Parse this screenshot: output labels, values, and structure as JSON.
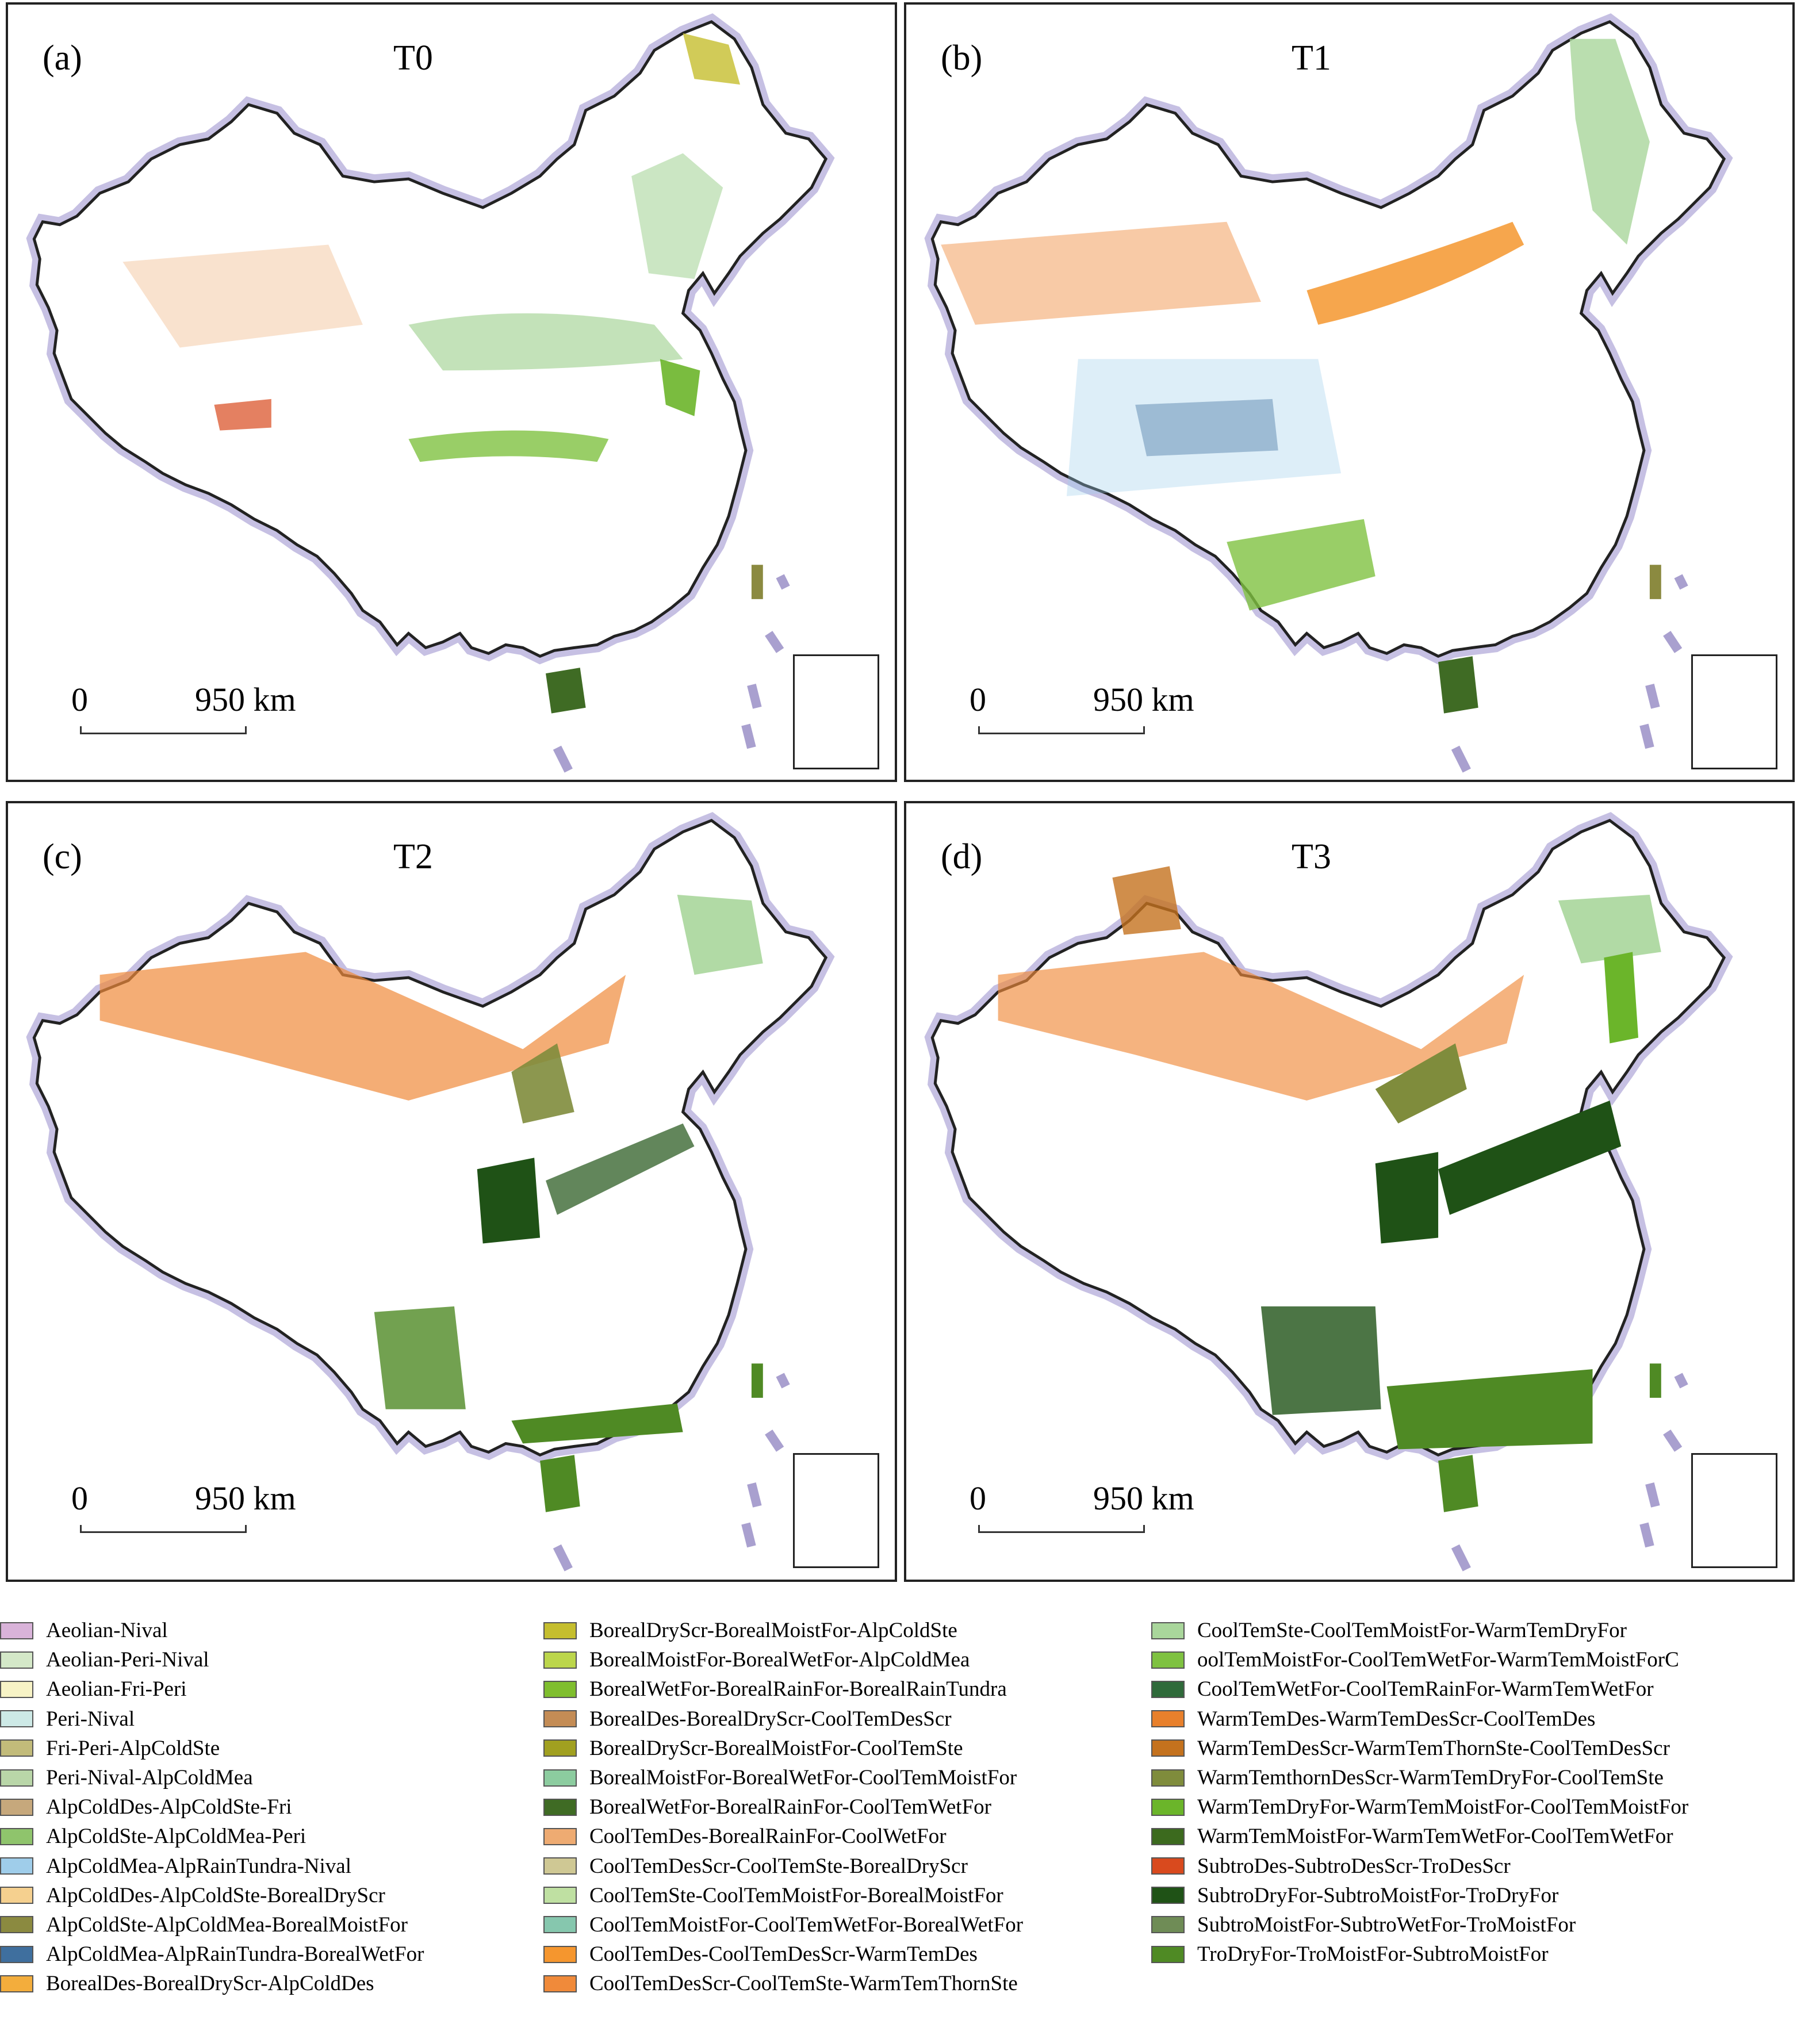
{
  "panels": [
    {
      "letter": "(a)",
      "title": "T0"
    },
    {
      "letter": "(b)",
      "title": "T1"
    },
    {
      "letter": "(c)",
      "title": "T2"
    },
    {
      "letter": "(d)",
      "title": "T3"
    }
  ],
  "scale_bar": {
    "start": "0",
    "end": "950 km"
  },
  "legend": [
    {
      "label": "Aeolian-Nival",
      "color": "#d9b3d9"
    },
    {
      "label": "Aeolian-Peri-Nival",
      "color": "#d4e8c8"
    },
    {
      "label": "Aeolian-Fri-Peri",
      "color": "#f7f3c6"
    },
    {
      "label": "Peri-Nival",
      "color": "#cde9e6"
    },
    {
      "label": "Fri-Peri-AlpColdSte",
      "color": "#c2bb7a"
    },
    {
      "label": "Peri-Nival-AlpColdMea",
      "color": "#b9d6a8"
    },
    {
      "label": "AlpColdDes-AlpColdSte-Fri",
      "color": "#c6a87c"
    },
    {
      "label": "AlpColdSte-AlpColdMea-Peri",
      "color": "#8fc46c"
    },
    {
      "label": "AlpColdMea-AlpRainTundra-Nival",
      "color": "#9fcdea"
    },
    {
      "label": "AlpColdDes-AlpColdSte-BorealDryScr",
      "color": "#f5d08f"
    },
    {
      "label": "AlpColdSte-AlpColdMea-BorealMoistFor",
      "color": "#8b8a40"
    },
    {
      "label": "AlpColdMea-AlpRainTundra-BorealWetFor",
      "color": "#3f6f9e"
    },
    {
      "label": "BorealDes-BorealDryScr-AlpColdDes",
      "color": "#f3ad3c"
    },
    {
      "label": "BorealDryScr-BorealMoistFor-AlpColdSte",
      "color": "#c5be2e"
    },
    {
      "label": "BorealMoistFor-BorealWetFor-AlpColdMea",
      "color": "#bcd64b"
    },
    {
      "label": "BorealWetFor-BorealRainFor-BorealRainTundra",
      "color": "#7fbe2e"
    },
    {
      "label": "BorealDes-BorealDryScr-CoolTemDesScr",
      "color": "#c48c55"
    },
    {
      "label": "BorealDryScr-BorealMoistFor-CoolTemSte",
      "color": "#a1a020"
    },
    {
      "label": "BorealMoistFor-BorealWetFor-CoolTemMoistFor",
      "color": "#8ccc9f"
    },
    {
      "label": "BorealWetFor-BorealRainFor-CoolTemWetFor",
      "color": "#3f6b24"
    },
    {
      "label": "CoolTemDes-BorealRainFor-CoolWetFor",
      "color": "#eeab72"
    },
    {
      "label": "CoolTemDesScr-CoolTemSte-BorealDryScr",
      "color": "#cfc894"
    },
    {
      "label": "CoolTemSte-CoolTemMoistFor-BorealMoistFor",
      "color": "#bfe0a2"
    },
    {
      "label": "CoolTemMoistFor-CoolTemWetFor-BorealWetFor",
      "color": "#86c7ae"
    },
    {
      "label": "CoolTemDes-CoolTemDesScr-WarmTemDes",
      "color": "#f5962e"
    },
    {
      "label": "CoolTemDesScr-CoolTemSte-WarmTemThornSte",
      "color": "#f08a3a"
    },
    {
      "label": "CoolTemSte-CoolTemMoistFor-WarmTemDryFor",
      "color": "#a9d69b"
    },
    {
      "label": "oolTemMoistFor-CoolTemWetFor-WarmTemMoistForC",
      "color": "#7fc241"
    },
    {
      "label": "CoolTemWetFor-CoolTemRainFor-WarmTemWetFor",
      "color": "#2f6a3a"
    },
    {
      "label": "WarmTemDes-WarmTemDesScr-CoolTemDes",
      "color": "#e8802c"
    },
    {
      "label": "WarmTemDesScr-WarmTemThornSte-CoolTemDesScr",
      "color": "#c4721e"
    },
    {
      "label": "WarmTemthornDesScr-WarmTemDryFor-CoolTemSte",
      "color": "#7f8c3c"
    },
    {
      "label": "WarmTemDryFor-WarmTemMoistFor-CoolTemMoistFor",
      "color": "#6bb52a"
    },
    {
      "label": "WarmTemMoistFor-WarmTemWetFor-CoolTemWetFor",
      "color": "#3c6a1e"
    },
    {
      "label": "SubtroDes-SubtroDesScr-TroDesScr",
      "color": "#d94a1e"
    },
    {
      "label": "SubtroDryFor-SubtroMoistFor-TroDryFor",
      "color": "#1f5216"
    },
    {
      "label": "SubtroMoistFor-SubtroWetFor-TroMoistFor",
      "color": "#6f8c56"
    },
    {
      "label": "TroDryFor-TroMoistFor-SubtroMoistFor",
      "color": "#4f8a24"
    }
  ]
}
